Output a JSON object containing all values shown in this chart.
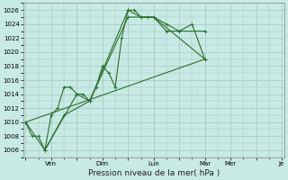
{
  "xlabel": "Pression niveau de la mer( hPa )",
  "ylim": [
    1005,
    1027
  ],
  "yticks": [
    1006,
    1008,
    1010,
    1012,
    1014,
    1016,
    1018,
    1020,
    1022,
    1024,
    1026
  ],
  "day_labels": [
    "",
    "Ven",
    "",
    "Dim",
    "",
    "Lun",
    "",
    "Mar",
    "Mer",
    "",
    "Je"
  ],
  "day_positions": [
    0,
    1,
    2,
    3,
    4,
    5,
    6,
    7,
    8,
    9,
    10
  ],
  "x_major_labels": [
    "Ven",
    "Dim",
    "Lun",
    "Mar",
    "Mer",
    "Je"
  ],
  "x_major_pos": [
    1,
    3,
    5,
    7,
    8,
    10
  ],
  "bg_color": "#c8eae4",
  "grid_color": "#a0c8c0",
  "line_color": "#2d6e2d",
  "xlim": [
    -0.1,
    10.1
  ],
  "series1": [
    [
      0.0,
      1010
    ],
    [
      0.25,
      1008
    ],
    [
      0.5,
      1008
    ],
    [
      0.75,
      1006
    ],
    [
      1.0,
      1011
    ],
    [
      1.25,
      1012
    ],
    [
      1.5,
      1015
    ],
    [
      1.75,
      1015
    ],
    [
      2.0,
      1014
    ],
    [
      2.25,
      1014
    ],
    [
      2.5,
      1013
    ],
    [
      2.75,
      1015
    ],
    [
      3.0,
      1018
    ],
    [
      3.25,
      1017
    ],
    [
      3.5,
      1015
    ],
    [
      3.75,
      1022
    ],
    [
      4.0,
      1026
    ],
    [
      4.25,
      1026
    ],
    [
      4.5,
      1025
    ],
    [
      4.75,
      1025
    ],
    [
      5.0,
      1025
    ],
    [
      5.5,
      1024
    ],
    [
      6.0,
      1023
    ],
    [
      6.5,
      1024
    ],
    [
      7.0,
      1019
    ]
  ],
  "series2": [
    [
      0.0,
      1010
    ],
    [
      0.75,
      1006
    ],
    [
      2.0,
      1014
    ],
    [
      2.5,
      1013
    ],
    [
      4.0,
      1026
    ],
    [
      4.5,
      1025
    ],
    [
      5.0,
      1025
    ],
    [
      7.0,
      1019
    ]
  ],
  "series3_straight": [
    [
      0.0,
      1010
    ],
    [
      7.0,
      1019
    ]
  ],
  "series4": [
    [
      0.75,
      1006
    ],
    [
      1.5,
      1011
    ],
    [
      2.5,
      1013
    ],
    [
      4.0,
      1025
    ],
    [
      5.0,
      1025
    ],
    [
      5.5,
      1023
    ],
    [
      7.0,
      1023
    ]
  ]
}
